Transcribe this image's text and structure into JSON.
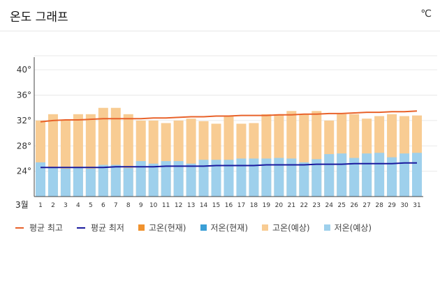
{
  "header": {
    "title": "온도 그래프",
    "unit": "℃"
  },
  "colors": {
    "max_line": "#e8622a",
    "min_line": "#1a1a9e",
    "bar_high_current": "#f0922e",
    "bar_low_current": "#3b9fd6",
    "bar_high_forecast": "#f8cc93",
    "bar_low_forecast": "#9ed0ec",
    "grid": "#e9e9e9"
  },
  "legend": [
    {
      "label": "평균 최고",
      "type": "line",
      "color": "#e8622a"
    },
    {
      "label": "평균 최저",
      "type": "line",
      "color": "#1a1a9e"
    },
    {
      "label": "고온(현재)",
      "type": "box",
      "color": "#f0922e"
    },
    {
      "label": "저온(현재)",
      "type": "box",
      "color": "#3b9fd6"
    },
    {
      "label": "고온(예상)",
      "type": "box",
      "color": "#f8cc93"
    },
    {
      "label": "저온(예상)",
      "type": "box",
      "color": "#9ed0ec"
    }
  ],
  "chart_data": {
    "type": "bar",
    "title": "온도 그래프",
    "xlabel": "3월",
    "ylabel": "",
    "ylim": [
      20,
      42
    ],
    "yticks": [
      "40°",
      "36°",
      "32°",
      "28°",
      "24°"
    ],
    "ytick_values": [
      40,
      36,
      32,
      28,
      24
    ],
    "categories": [
      "1",
      "2",
      "3",
      "4",
      "5",
      "6",
      "7",
      "8",
      "9",
      "10",
      "11",
      "12",
      "13",
      "14",
      "15",
      "16",
      "17",
      "18",
      "19",
      "20",
      "21",
      "22",
      "23",
      "24",
      "25",
      "26",
      "27",
      "28",
      "29",
      "30",
      "31"
    ],
    "series": [
      {
        "name": "고온(예상)",
        "values": [
          32.0,
          33.0,
          32.0,
          33.0,
          33.0,
          34.0,
          34.0,
          33.0,
          32.0,
          32.0,
          31.6,
          32.0,
          32.3,
          31.9,
          31.5,
          32.8,
          31.5,
          31.6,
          33.0,
          33.0,
          33.5,
          33.0,
          33.5,
          32.0,
          33.0,
          33.0,
          32.3,
          32.7,
          33.0,
          32.7,
          32.8
        ]
      },
      {
        "name": "저온(예상)",
        "values": [
          25.4,
          24.5,
          24.4,
          24.5,
          24.4,
          25.0,
          25.0,
          24.5,
          25.6,
          25.2,
          25.6,
          25.6,
          25.2,
          25.8,
          25.8,
          25.8,
          26.0,
          26.0,
          26.0,
          26.1,
          26.0,
          25.4,
          25.9,
          26.7,
          26.8,
          26.1,
          26.8,
          26.9,
          26.2,
          26.8,
          26.9
        ]
      },
      {
        "name": "평균 최고",
        "values": [
          31.8,
          32.0,
          32.1,
          32.1,
          32.2,
          32.3,
          32.3,
          32.3,
          32.3,
          32.4,
          32.4,
          32.5,
          32.6,
          32.6,
          32.7,
          32.7,
          32.8,
          32.8,
          32.8,
          32.9,
          32.9,
          33.0,
          33.0,
          33.1,
          33.1,
          33.2,
          33.3,
          33.3,
          33.4,
          33.4,
          33.5
        ]
      },
      {
        "name": "평균 최저",
        "values": [
          24.6,
          24.6,
          24.6,
          24.6,
          24.6,
          24.6,
          24.7,
          24.7,
          24.7,
          24.7,
          24.8,
          24.8,
          24.8,
          24.8,
          24.9,
          24.9,
          24.9,
          24.9,
          25.0,
          25.0,
          25.0,
          25.0,
          25.1,
          25.1,
          25.1,
          25.2,
          25.2,
          25.2,
          25.2,
          25.3,
          25.3
        ]
      }
    ]
  }
}
